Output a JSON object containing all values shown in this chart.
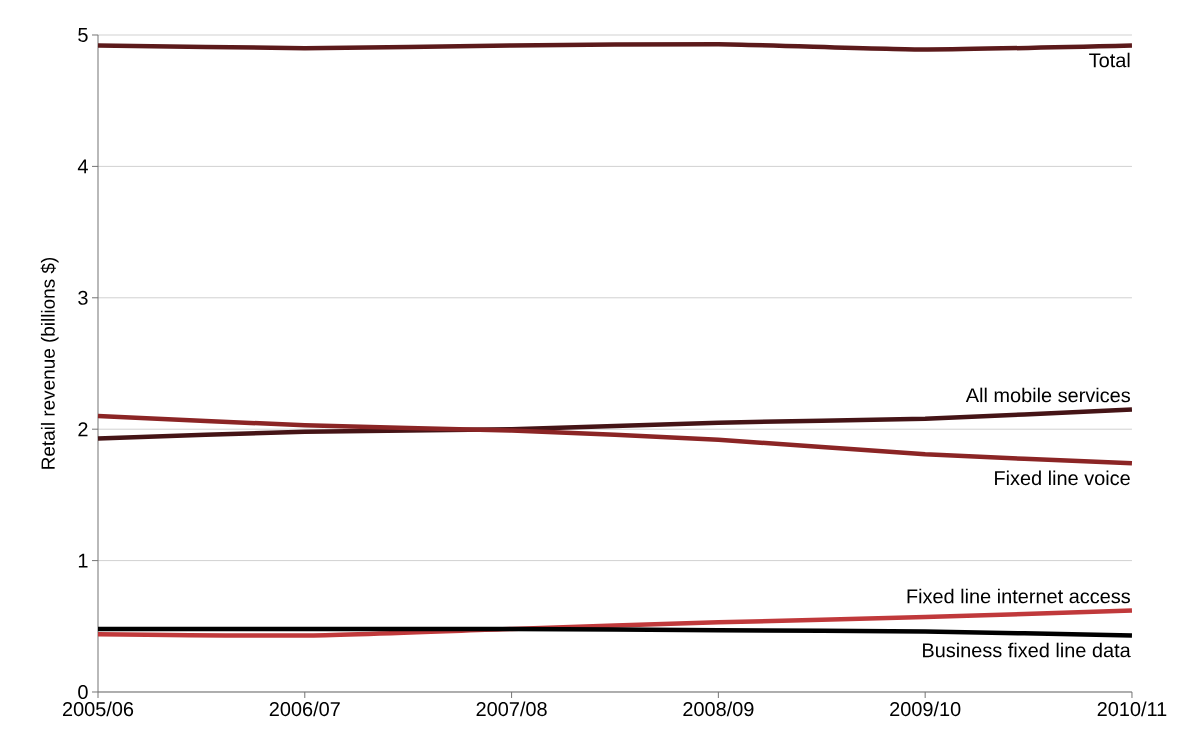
{
  "chart_data": {
    "type": "line",
    "ylabel": "Retail revenue (billions $)",
    "categories": [
      "2005/06",
      "2006/07",
      "2007/08",
      "2008/09",
      "2009/10",
      "2010/11"
    ],
    "series": [
      {
        "name": "Total",
        "color": "#5c1a1b",
        "values": [
          4.92,
          4.9,
          4.92,
          4.93,
          4.89,
          4.92
        ]
      },
      {
        "name": "All mobile services",
        "color": "#451416",
        "values": [
          1.93,
          1.98,
          2.0,
          2.05,
          2.08,
          2.15
        ]
      },
      {
        "name": "Fixed line voice",
        "color": "#8b2525",
        "values": [
          2.1,
          2.03,
          1.99,
          1.92,
          1.81,
          1.74
        ]
      },
      {
        "name": "Fixed line internet access",
        "color": "#c0393b",
        "values": [
          0.44,
          0.43,
          0.48,
          0.53,
          0.57,
          0.62
        ]
      },
      {
        "name": "Business fixed line data",
        "color": "#000000",
        "values": [
          0.48,
          0.48,
          0.48,
          0.47,
          0.46,
          0.43
        ]
      }
    ],
    "ylim": [
      0,
      5
    ],
    "yticks": [
      0,
      1,
      2,
      3,
      4,
      5
    ],
    "grid": "y",
    "legend": false,
    "marker": "none",
    "line_style": "solid"
  }
}
